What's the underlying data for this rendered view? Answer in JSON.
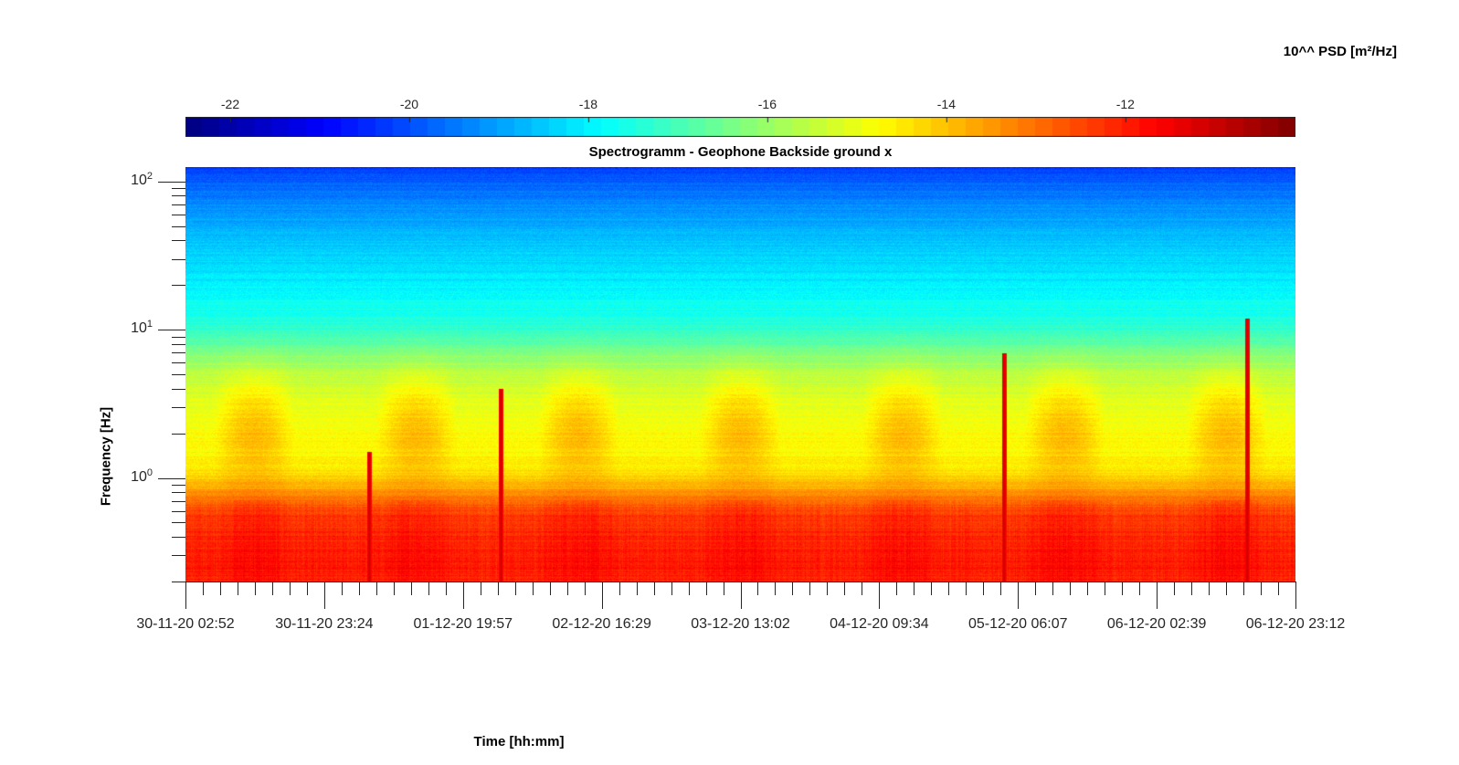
{
  "colorbar": {
    "title": "10^^ PSD [m²/Hz]",
    "ticks": [
      "-22",
      "-20",
      "-18",
      "-16",
      "-14",
      "-12"
    ],
    "tick_values": [
      -22,
      -20,
      -18,
      -16,
      -14,
      -12
    ],
    "range": [
      -22.5,
      -10.1
    ],
    "colormap": "jet"
  },
  "chart_data": {
    "type": "heatmap",
    "title": "Spectrogramm - Geophone Backside ground x",
    "xlabel": "Time [hh:mm]",
    "ylabel": "Frequency [Hz]",
    "x_tick_labels": [
      "30-11-20 02:52",
      "30-11-20 23:24",
      "01-12-20 19:57",
      "02-12-20 16:29",
      "03-12-20 13:02",
      "04-12-20 09:34",
      "05-12-20 06:07",
      "06-12-20 02:39",
      "06-12-20 23:12"
    ],
    "xlim": [
      "30-11-20 02:52",
      "06-12-20 23:12"
    ],
    "y_scale": "log",
    "y_tick_labels": [
      {
        "base": "10",
        "exp": "2",
        "value": 100
      },
      {
        "base": "10",
        "exp": "1",
        "value": 10
      },
      {
        "base": "10",
        "exp": "0",
        "value": 1
      }
    ],
    "ylim": [
      0.2,
      125
    ],
    "log10_psd_profile": {
      "frequency_hz": [
        0.2,
        0.3,
        0.4,
        0.55,
        0.7,
        0.9,
        1.2,
        2,
        3,
        5,
        7,
        10,
        20,
        50,
        100,
        125
      ],
      "log10_psd": [
        -12.0,
        -12.0,
        -12.1,
        -12.3,
        -12.9,
        -13.9,
        -14.6,
        -14.8,
        -15.0,
        -15.6,
        -16.3,
        -17.3,
        -18.0,
        -18.8,
        -19.8,
        -20.3
      ]
    },
    "transient_events": [
      {
        "time": "01-12-20 06:00",
        "f_max_hz": 1.5
      },
      {
        "time": "02-12-20 01:30",
        "f_max_hz": 4.0
      },
      {
        "time": "05-12-20 04:00",
        "f_max_hz": 7.0
      },
      {
        "time": "06-12-20 16:00",
        "f_max_hz": 12.0
      }
    ]
  }
}
